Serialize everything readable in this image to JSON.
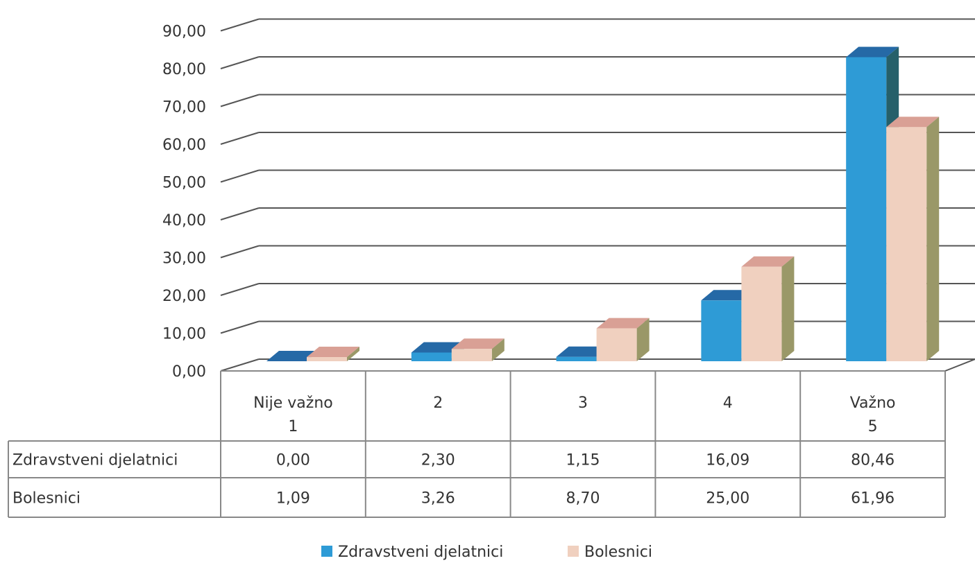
{
  "chart_data": {
    "type": "bar",
    "categories": [
      [
        "Nije važno",
        "1"
      ],
      [
        "2"
      ],
      [
        "3"
      ],
      [
        "4"
      ],
      [
        "Važno",
        "5"
      ]
    ],
    "series": [
      {
        "name": "Zdravstveni djelatnici",
        "values": [
          0.0,
          2.3,
          1.15,
          16.09,
          80.46
        ],
        "value_labels": [
          "0,00",
          "2,30",
          "1,15",
          "16,09",
          "80,46"
        ],
        "color": "#2e9bd6"
      },
      {
        "name": "Bolesnici",
        "values": [
          1.09,
          3.26,
          8.7,
          25.0,
          61.96
        ],
        "value_labels": [
          "1,09",
          "3,26",
          "8,70",
          "25,00",
          "61,96"
        ],
        "color": "#f0d0bf"
      }
    ],
    "y_ticks": [
      "0,00",
      "10,00",
      "20,00",
      "30,00",
      "40,00",
      "50,00",
      "60,00",
      "70,00",
      "80,00",
      "90,00"
    ],
    "ylim": [
      0,
      90
    ],
    "grid": true,
    "legend_position": "bottom",
    "data_table": true,
    "style": "3d-clustered-column",
    "colors": {
      "s1_top": "#2569a6",
      "s1_side": "#26606a",
      "s2_top": "#d9a095",
      "s2_side": "#9a9868",
      "grid": "#555555",
      "table_border": "#888888"
    }
  }
}
